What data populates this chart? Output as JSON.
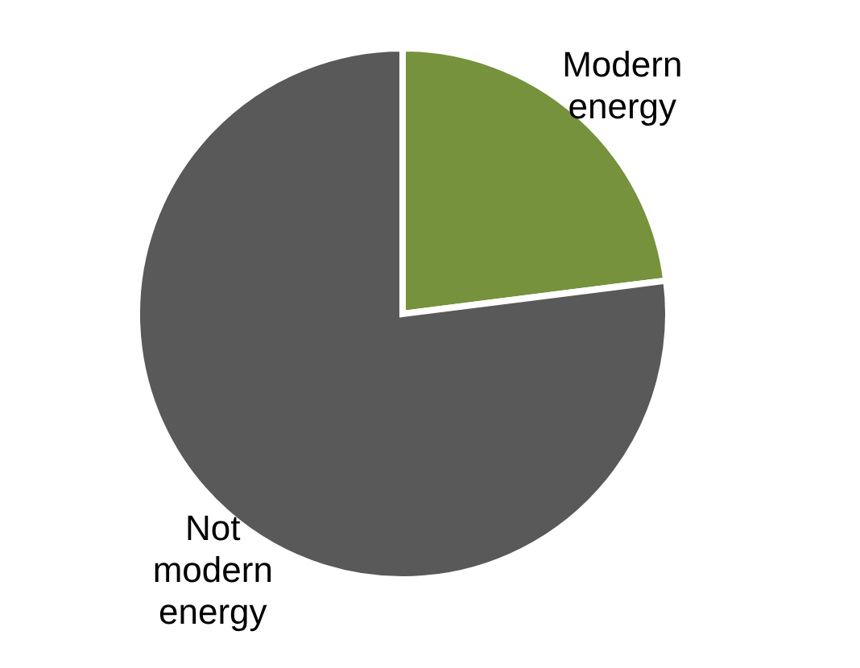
{
  "chart_data": {
    "type": "pie",
    "categories": [
      "Modern energy",
      "Not modern energy"
    ],
    "values": [
      23,
      77
    ],
    "colors": [
      "#76923c",
      "#595959"
    ]
  }
}
